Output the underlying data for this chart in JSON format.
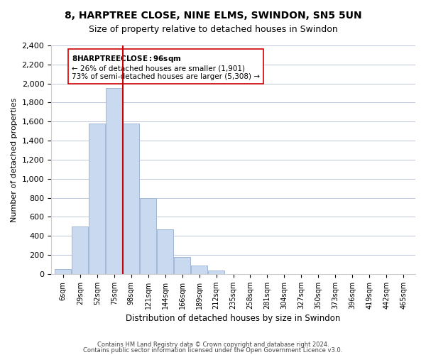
{
  "title": "8, HARPTREE CLOSE, NINE ELMS, SWINDON, SN5 5UN",
  "subtitle": "Size of property relative to detached houses in Swindon",
  "xlabel": "Distribution of detached houses by size in Swindon",
  "ylabel": "Number of detached properties",
  "bar_labels": [
    "6sqm",
    "29sqm",
    "52sqm",
    "75sqm",
    "98sqm",
    "121sqm",
    "144sqm",
    "166sqm",
    "189sqm",
    "212sqm",
    "235sqm",
    "258sqm",
    "281sqm",
    "304sqm",
    "327sqm",
    "350sqm",
    "373sqm",
    "396sqm",
    "419sqm",
    "442sqm",
    "465sqm"
  ],
  "bar_values": [
    50,
    500,
    1580,
    1950,
    1580,
    800,
    470,
    175,
    90,
    35,
    0,
    0,
    0,
    0,
    0,
    0,
    0,
    0,
    0,
    0,
    0
  ],
  "bar_color": "#c9d9f0",
  "bar_edge_color": "#a0b8d8",
  "ylim": [
    0,
    2400
  ],
  "yticks": [
    0,
    200,
    400,
    600,
    800,
    1000,
    1200,
    1400,
    1600,
    1800,
    2000,
    2200,
    2400
  ],
  "vline_x": 4,
  "vline_color": "#cc0000",
  "annotation_title": "8 HARPTREE CLOSE: 96sqm",
  "annotation_line1": "← 26% of detached houses are smaller (1,901)",
  "annotation_line2": "73% of semi-detached houses are larger (5,308) →",
  "annotation_box_color": "#ffffff",
  "annotation_box_edge": "#cc0000",
  "footer1": "Contains HM Land Registry data © Crown copyright and database right 2024.",
  "footer2": "Contains public sector information licensed under the Open Government Licence v3.0.",
  "background_color": "#ffffff",
  "grid_color": "#c0c8d8"
}
